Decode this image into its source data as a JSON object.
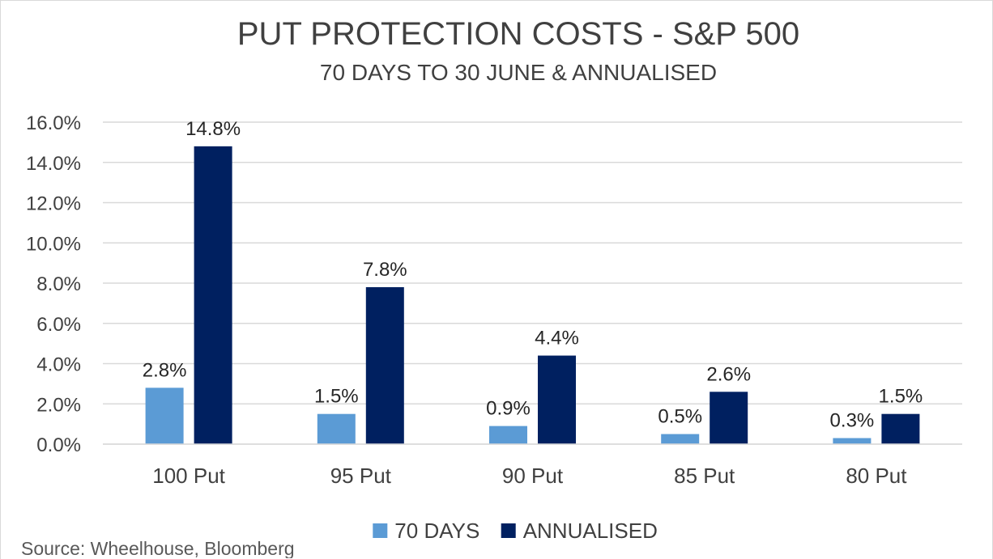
{
  "chart_data": {
    "type": "bar",
    "title": "PUT PROTECTION COSTS - S&P 500",
    "subtitle": "70 DAYS TO 30 JUNE & ANNUALISED",
    "xlabel": "",
    "ylabel": "",
    "categories": [
      "100 Put",
      "95 Put",
      "90 Put",
      "85 Put",
      "80 Put"
    ],
    "series": [
      {
        "name": "70 DAYS",
        "values": [
          2.8,
          1.5,
          0.9,
          0.5,
          0.3
        ],
        "labels": [
          "2.8%",
          "1.5%",
          "0.9%",
          "0.5%",
          "0.3%"
        ],
        "color": "#5b9bd5"
      },
      {
        "name": "ANNUALISED",
        "values": [
          14.8,
          7.8,
          4.4,
          2.6,
          1.5
        ],
        "labels": [
          "14.8%",
          "7.8%",
          "4.4%",
          "2.6%",
          "1.5%"
        ],
        "color": "#002060"
      }
    ],
    "ylim": [
      0,
      16
    ],
    "y_ticks": [
      {
        "value": 0,
        "label": "0.0%"
      },
      {
        "value": 2,
        "label": "2.0%"
      },
      {
        "value": 4,
        "label": "4.0%"
      },
      {
        "value": 6,
        "label": "6.0%"
      },
      {
        "value": 8,
        "label": "8.0%"
      },
      {
        "value": 10,
        "label": "10.0%"
      },
      {
        "value": 12,
        "label": "12.0%"
      },
      {
        "value": 14,
        "label": "14.0%"
      },
      {
        "value": 16,
        "label": "16.0%"
      }
    ],
    "grid": true,
    "gridline_color": "#d9d9d9",
    "legend_position": "bottom",
    "source": "Source: Wheelhouse, Bloomberg"
  }
}
